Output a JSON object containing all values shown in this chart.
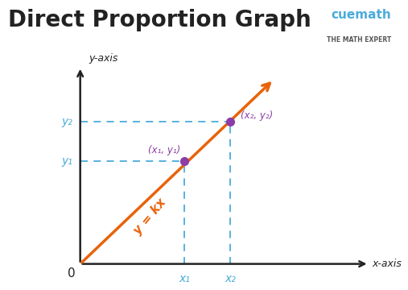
{
  "title": "Direct Proportion Graph",
  "title_fontsize": 20,
  "title_color": "#222222",
  "bg_color": "#ffffff",
  "axis_color": "#222222",
  "line_color": "#E8630A",
  "dashed_color": "#4AABDB",
  "point_color": "#8B3DA7",
  "label_color_blue": "#4AABDB",
  "label_color_purple": "#8B3DA7",
  "label_color_orange": "#E8630A",
  "xaxis_label": "x-axis",
  "yaxis_label": "y-axis",
  "origin_label": "0",
  "formula_label": "y = kx",
  "point1_label": "(x₁, y₁)",
  "point2_label": "(x₂, y₂)",
  "x1_label": "x₁",
  "x2_label": "x₂",
  "y1_label": "y₁",
  "y2_label": "y₂",
  "cuemath_text": "cuemath",
  "cuemath_sub": "THE MATH EXPERT",
  "cuemath_color": "#4AABDB",
  "cuemath_sub_color": "#555555"
}
